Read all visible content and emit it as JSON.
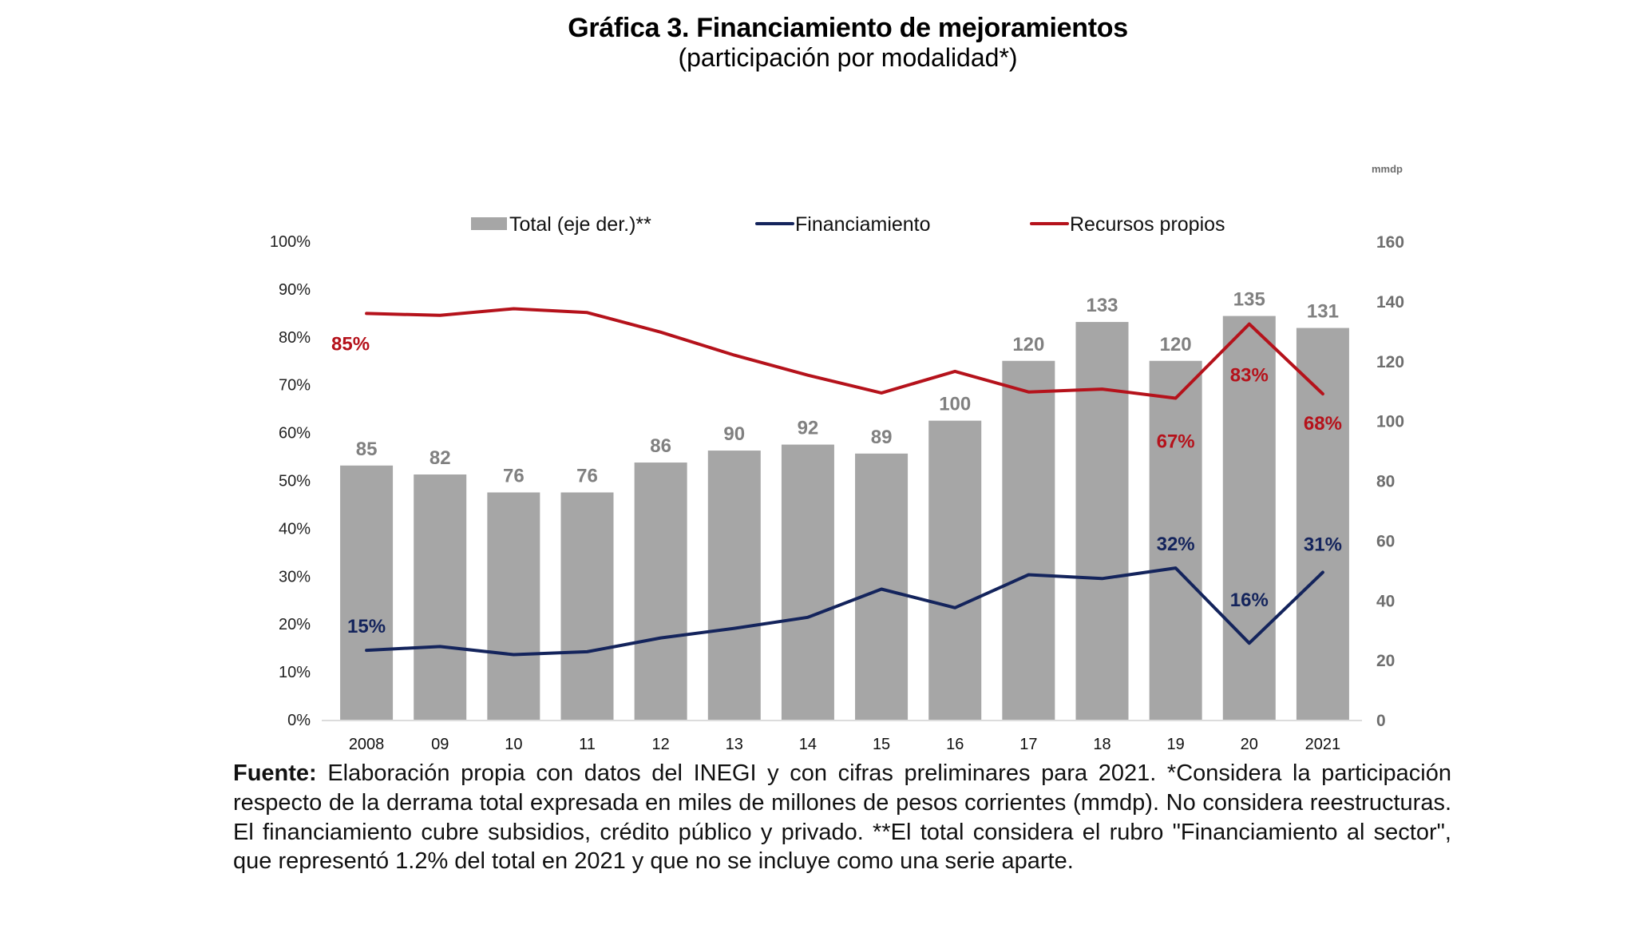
{
  "header": {
    "title": "Gráfica 3. Financiamiento de mejoramientos",
    "subtitle": "(participación por modalidad*)"
  },
  "chart_data": {
    "type": "bar+line",
    "title": "Gráfica 3. Financiamiento de mejoramientos",
    "subtitle": "(participación por modalidad*)",
    "categories": [
      "2008",
      "09",
      "10",
      "11",
      "12",
      "13",
      "14",
      "15",
      "16",
      "17",
      "18",
      "19",
      "20",
      "2021"
    ],
    "left_axis": {
      "range": [
        0,
        100
      ],
      "ticks": [
        "0%",
        "10%",
        "20%",
        "30%",
        "40%",
        "50%",
        "60%",
        "70%",
        "80%",
        "90%",
        "100%"
      ]
    },
    "right_axis": {
      "unit_label": "mmdp",
      "range": [
        0,
        160
      ],
      "ticks": [
        "0",
        "20",
        "40",
        "60",
        "80",
        "100",
        "120",
        "140",
        "160"
      ]
    },
    "legend": {
      "placement": "top-center",
      "entries": [
        {
          "label": "Total (eje der.)**",
          "kind": "bar",
          "color": "#a6a6a6"
        },
        {
          "label": "Financiamiento",
          "kind": "line",
          "color": "#14245c"
        },
        {
          "label": "Recursos propios",
          "kind": "line",
          "color": "#b5121b"
        }
      ]
    },
    "series": [
      {
        "name": "Total (eje der.)**",
        "type": "bar",
        "axis": "right",
        "color": "#a6a6a6",
        "label_color": "#808080",
        "values": [
          85,
          82,
          76,
          76,
          86,
          90,
          92,
          89,
          100,
          120,
          133,
          120,
          135,
          131
        ],
        "labels": [
          "85",
          "82",
          "76",
          "76",
          "86",
          "90",
          "92",
          "89",
          "100",
          "120",
          "133",
          "120",
          "135",
          "131"
        ]
      },
      {
        "name": "Financiamiento",
        "type": "line",
        "axis": "left",
        "color": "#14245c",
        "values": [
          14.5,
          15.3,
          13.6,
          14.2,
          17.1,
          19.1,
          21.4,
          27.3,
          23.4,
          30.3,
          29.5,
          31.7,
          16.0,
          30.8
        ],
        "labels": [
          {
            "index": 0,
            "text": "15%",
            "pos": "above"
          },
          {
            "index": 11,
            "text": "32%",
            "pos": "above"
          },
          {
            "index": 12,
            "text": "16%",
            "pos": "above"
          },
          {
            "index": 13,
            "text": "31%",
            "pos": "above"
          }
        ]
      },
      {
        "name": "Recursos propios",
        "type": "line",
        "axis": "left",
        "color": "#b5121b",
        "values": [
          84.9,
          84.5,
          85.9,
          85.1,
          81.0,
          76.2,
          72.0,
          68.3,
          72.8,
          68.5,
          69.1,
          67.2,
          82.7,
          68.1
        ],
        "labels": [
          {
            "index": 0,
            "text": "85%",
            "pos": "below-left"
          },
          {
            "index": 11,
            "text": "67%",
            "pos": "below"
          },
          {
            "index": 12,
            "text": "83%",
            "pos": "below"
          },
          {
            "index": 13,
            "text": "68%",
            "pos": "below"
          }
        ]
      }
    ],
    "grid": false
  },
  "footnote": {
    "lead": "Fuente:",
    "text": " Elaboración propia con datos del INEGI y con cifras preliminares para 2021. *Considera la participación respecto de la derrama total expresada en miles de millones de pesos corrientes (mmdp). No considera reestructuras. El financiamiento cubre subsidios, crédito público y privado. **El total considera  el rubro \"Financiamiento al sector\", que representó 1.2% del total en 2021 y que no se incluye como una serie aparte."
  }
}
